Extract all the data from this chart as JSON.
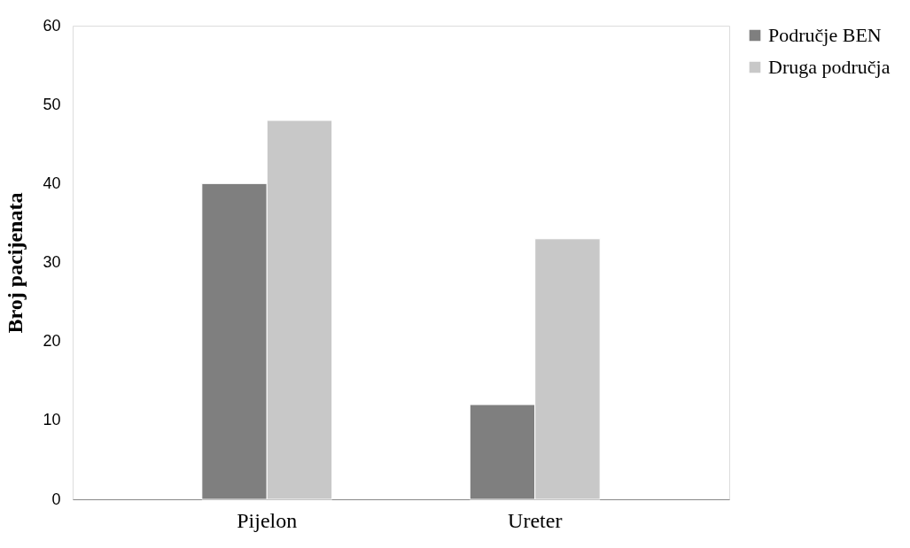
{
  "chart_data": {
    "type": "bar",
    "ylabel": "Broj pacijenata",
    "categories": [
      "Pijelon",
      "Ureter"
    ],
    "series": [
      {
        "name": "Područje BEN",
        "color": "#7f7f7f",
        "values": [
          40,
          12
        ]
      },
      {
        "name": "Druga područja",
        "color": "#c8c8c8",
        "values": [
          48,
          33
        ]
      }
    ],
    "ylim": [
      0,
      60
    ],
    "yticks": [
      0,
      10,
      20,
      30,
      40,
      50,
      60
    ],
    "grid": false,
    "legend": "right"
  }
}
